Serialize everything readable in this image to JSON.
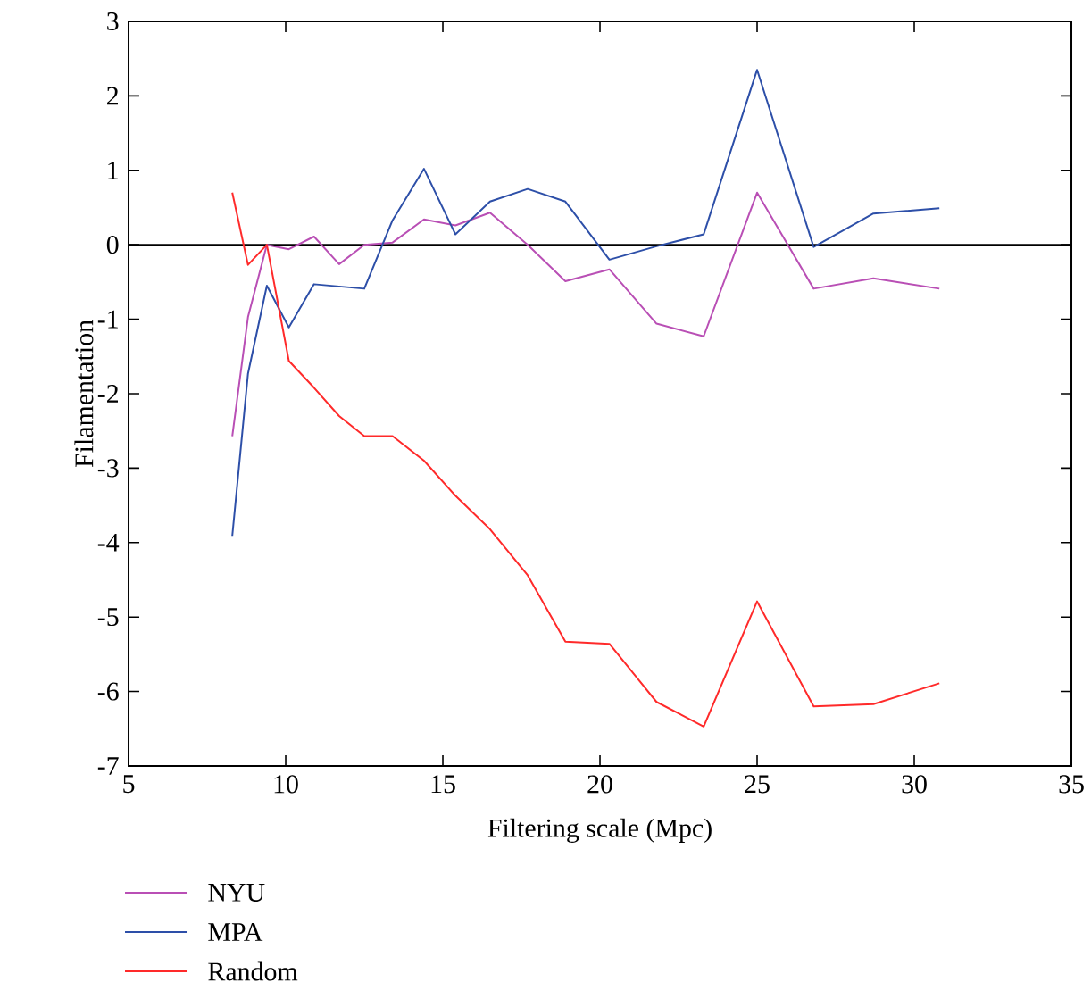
{
  "chart_data": {
    "type": "line",
    "xlabel": "Filtering scale (Mpc)",
    "ylabel": "Filamentation",
    "x": [
      8.3,
      8.8,
      9.4,
      10.1,
      10.9,
      11.7,
      12.5,
      13.4,
      14.4,
      15.4,
      16.5,
      17.7,
      18.9,
      20.3,
      21.8,
      23.3,
      25.0,
      26.8,
      28.7,
      30.8
    ],
    "series": [
      {
        "name": "NYU",
        "color": "#b94fb5",
        "values": [
          -2.57,
          -0.97,
          0,
          -0.06,
          0.11,
          -0.26,
          0,
          0.03,
          0.34,
          0.26,
          0.43,
          0,
          -0.49,
          -0.33,
          -1.06,
          -1.23,
          0.7,
          -0.59,
          -0.45,
          -0.59
        ]
      },
      {
        "name": "MPA",
        "color": "#2d4fa8",
        "values": [
          -3.91,
          -1.73,
          -0.55,
          -1.11,
          -0.53,
          -0.56,
          -0.59,
          0.33,
          1.02,
          0.14,
          0.58,
          0.75,
          0.58,
          -0.2,
          -0.02,
          0.14,
          2.35,
          -0.03,
          0.42,
          0.49
        ]
      },
      {
        "name": "Random",
        "color": "#ff2a2a",
        "values": [
          0.7,
          -0.27,
          0,
          -1.56,
          -1.92,
          -2.3,
          -2.57,
          -2.57,
          -2.9,
          -3.37,
          -3.82,
          -4.44,
          -5.33,
          -5.36,
          -6.14,
          -6.47,
          -4.79,
          -6.2,
          -6.17,
          -5.89
        ]
      }
    ],
    "xlim": [
      5,
      35
    ],
    "xticks": [
      5,
      10,
      15,
      20,
      25,
      30,
      35
    ],
    "ylim": [
      -7,
      3
    ],
    "yticks": [
      -7,
      -6,
      -5,
      -4,
      -3,
      -2,
      -1,
      0,
      1,
      2,
      3
    ],
    "ref_lines": [
      {
        "axis": "y",
        "value": 0,
        "color": "#000000"
      }
    ],
    "grid": false,
    "legend": "bottom left",
    "marker": "none",
    "line_style": "solid"
  }
}
